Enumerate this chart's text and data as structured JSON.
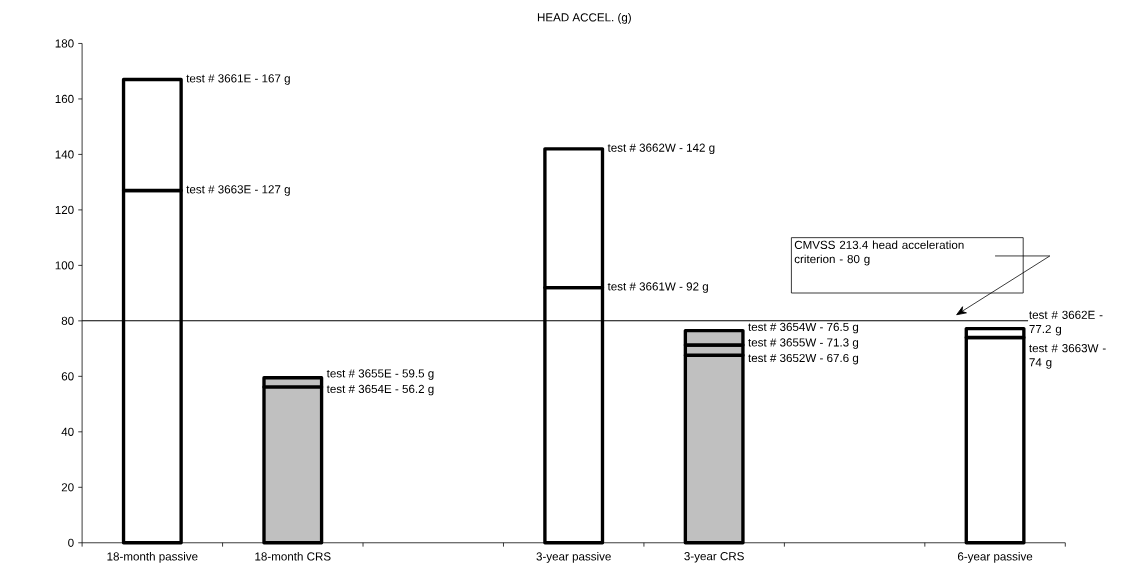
{
  "chart_data": {
    "type": "bar",
    "stacked": true,
    "title": "HEAD ACCEL. (g)",
    "categories": [
      "18-month passive",
      "18-month CRS",
      null,
      "3-year passive",
      "3-year CRS",
      null,
      "6-year passive"
    ],
    "series": [
      {
        "colors": [
          "#ffffff",
          "#c0c0c0",
          null,
          "#ffffff",
          "#c0c0c0",
          null,
          "#ffffff"
        ],
        "values": [
          127,
          56.2,
          null,
          92,
          67.6,
          null,
          74
        ]
      },
      {
        "colors": [
          "#ffffff",
          "#c0c0c0",
          null,
          "#ffffff",
          "#c0c0c0",
          null,
          "#ffffff"
        ],
        "values": [
          40,
          3.3,
          null,
          50,
          3.7,
          null,
          3.2
        ]
      },
      {
        "colors": [
          "#ffffff",
          "#c0c0c0",
          null,
          "#ffffff",
          "#c0c0c0",
          null,
          "#ffffff"
        ],
        "values": [
          null,
          null,
          null,
          null,
          5.2,
          null,
          null
        ]
      }
    ],
    "ylim": [
      0,
      180
    ],
    "yticks": [
      0,
      20,
      40,
      60,
      80,
      100,
      120,
      140,
      160,
      180
    ],
    "ref_lines": [
      {
        "axis": "y",
        "value": 80,
        "label": "CMVSS 213.4 head acceleration criterion - 80 g",
        "color": "#000000"
      }
    ],
    "annotations": [
      {
        "text": "test # 3661E - 167 g",
        "x": "18-month passive",
        "y": 167
      },
      {
        "text": "test # 3663E - 127 g",
        "x": "18-month passive",
        "y": 127
      },
      {
        "text": "test # 3655E - 59.5 g",
        "x": "18-month CRS",
        "y": 59.5
      },
      {
        "text": "test # 3654E - 56.2 g",
        "x": "18-month CRS",
        "y": 56.2
      },
      {
        "text": "test # 3662W - 142 g",
        "x": "3-year passive",
        "y": 142
      },
      {
        "text": "test # 3661W - 92 g",
        "x": "3-year passive",
        "y": 92
      },
      {
        "text": "test # 3654W - 76.5 g",
        "x": "3-year CRS",
        "y": 76.5
      },
      {
        "text": "test # 3655W - 71.3 g",
        "x": "3-year CRS",
        "y": 71.3
      },
      {
        "text": "test # 3652W - 67.6 g",
        "x": "3-year CRS",
        "y": 67.6
      },
      {
        "text": "test # 3662E - 77.2 g",
        "x": "6-year passive",
        "y": 77.2
      },
      {
        "text": "test # 3663W - 74 g",
        "x": "6-year passive",
        "y": 74
      }
    ]
  }
}
